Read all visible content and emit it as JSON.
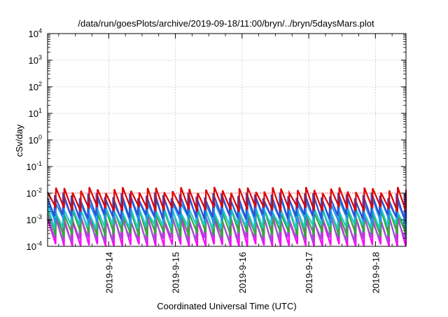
{
  "chart_data": {
    "type": "line",
    "title": "/data/run/goesPlots/archive/2019-09-18/11:00/bryn/../bryn/5daysMars.plot",
    "xlabel": "Coordinated Universal Time (UTC)",
    "ylabel": "cSv/day",
    "x_range": [
      "2019-09-13T02:00",
      "2019-09-18T11:00"
    ],
    "x_ticks": [
      "2019-9-14",
      "2019-9-15",
      "2019-9-16",
      "2019-9-17",
      "2019-9-18"
    ],
    "y_scale": "log",
    "ylim": [
      0.0001,
      10000
    ],
    "y_ticks": [
      {
        "base": "10",
        "exp": "-4"
      },
      {
        "base": "10",
        "exp": "-3"
      },
      {
        "base": "10",
        "exp": "-2"
      },
      {
        "base": "10",
        "exp": "-1"
      },
      {
        "base": "10",
        "exp": "0"
      },
      {
        "base": "10",
        "exp": "1"
      },
      {
        "base": "10",
        "exp": "2"
      },
      {
        "base": "10",
        "exp": "3"
      },
      {
        "base": "10",
        "exp": "4"
      }
    ],
    "grid": true,
    "reference_line": {
      "y": 0.01,
      "color": "#ff4040",
      "style": "dotted"
    },
    "sawtooth_period_hours": 3,
    "series": [
      {
        "color": "#dd0000",
        "peak": 0.0135,
        "trough": 0.0025
      },
      {
        "color": "#3050d0",
        "peak": 0.0085,
        "trough": 0.0013
      },
      {
        "color": "#2090ee",
        "peak": 0.005,
        "trough": 0.0009
      },
      {
        "color": "#20c8d0",
        "peak": 0.003,
        "trough": 0.00055
      },
      {
        "color": "#33aa33",
        "peak": 0.002,
        "trough": 0.00028
      },
      {
        "color": "#9955cc",
        "peak": 0.0014,
        "trough": 0.00018
      },
      {
        "color": "#ff00ff",
        "peak": 0.0011,
        "trough": 0.0001
      }
    ]
  }
}
